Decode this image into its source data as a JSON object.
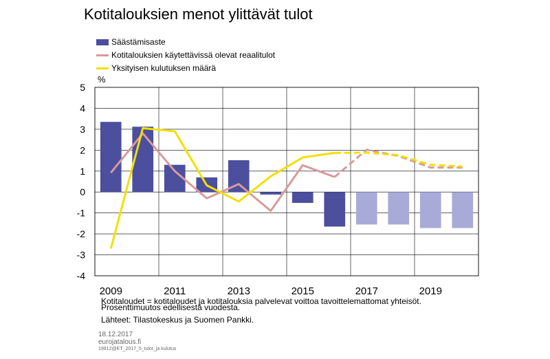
{
  "title": "Kotitalouksien menot ylittävät tulot",
  "legend": [
    {
      "label": "Säästämisaste",
      "color": "#4b4f9e",
      "kind": "bar"
    },
    {
      "label": "Kotitalouksien käytettävissä olevat reaalitulot",
      "color": "#d89a9a",
      "kind": "line"
    },
    {
      "label": "Yksityisen kulutuksen määrä",
      "color": "#f3e000",
      "kind": "line"
    }
  ],
  "unit": "%",
  "notes": {
    "line1": "Kotitaloudet = kotitaloudet ja kotitalouksia palvelevat voittoa tavoittelemattomat yhteisöt.",
    "line2": "Prosenttimuutos edellisestä vuodesta.",
    "line3": "Lähteet: Tilastokeskus ja Suomen Pankki."
  },
  "footer": {
    "date": "18.12.2017",
    "site": "eurojatalous.fi",
    "code": "19912@ET_2017_5_tulot_ja kulutus"
  },
  "chart_data": {
    "type": "bar",
    "years": [
      2009,
      2010,
      2011,
      2012,
      2013,
      2014,
      2015,
      2016,
      2017,
      2018,
      2019,
      2020
    ],
    "x_tick_labels": [
      "2009",
      "2011",
      "2013",
      "2015",
      "2017",
      "2019"
    ],
    "ylim": [
      -4,
      5
    ],
    "y_ticks": [
      -4,
      -3,
      -2,
      -1,
      0,
      1,
      2,
      3,
      4,
      5
    ],
    "grid": true,
    "bar_years": [
      2009,
      2010,
      2011,
      2012,
      2013,
      2014,
      2015,
      2016,
      2017,
      2018,
      2019,
      2020
    ],
    "forecast_from": 2017,
    "bar_color": "#4b4f9e",
    "bar_forecast_color": "#a8abd8",
    "series": [
      {
        "name": "Säästämisaste",
        "kind": "bar",
        "values": [
          3.35,
          3.12,
          1.3,
          0.7,
          1.52,
          -0.12,
          -0.52,
          -1.65,
          -1.55,
          -1.55,
          -1.72,
          -1.72
        ]
      },
      {
        "name": "Kotitalouksien käytettävissä olevat reaalitulot",
        "kind": "line",
        "color": "#d89a9a",
        "x": [
          2009.0,
          2010.0,
          2011.0,
          2012.0,
          2013.0,
          2014.0,
          2015.0,
          2016.0,
          2017.0,
          2018.0,
          2019.0,
          2020.0
        ],
        "values": [
          0.92,
          2.8,
          1.0,
          -0.3,
          0.38,
          -0.9,
          1.28,
          0.72,
          2.02,
          1.72,
          1.17,
          1.17
        ]
      },
      {
        "name": "Yksityisen kulutuksen määrä",
        "kind": "line",
        "color": "#f3e000",
        "x": [
          2009.0,
          2010.0,
          2011.0,
          2012.0,
          2013.0,
          2014.0,
          2015.0,
          2016.0,
          2017.0,
          2018.0,
          2019.0,
          2020.0
        ],
        "values": [
          -2.7,
          3.05,
          2.9,
          0.32,
          -0.45,
          0.75,
          1.65,
          1.87,
          1.88,
          1.76,
          1.3,
          1.22
        ]
      }
    ]
  }
}
